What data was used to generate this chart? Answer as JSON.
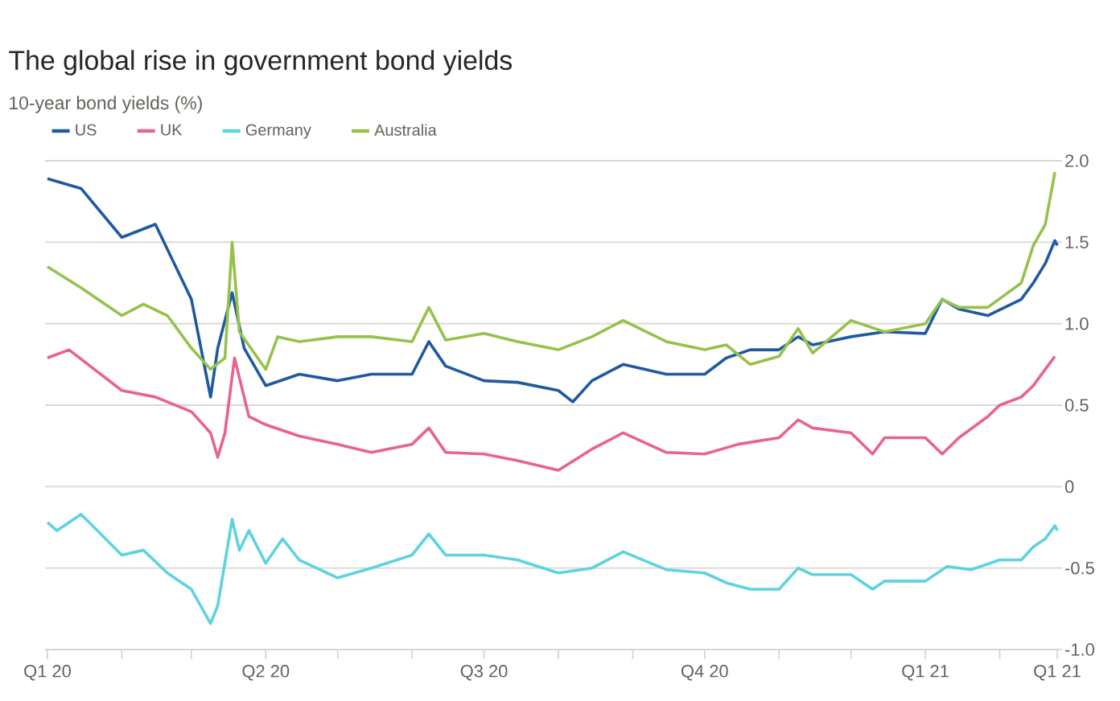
{
  "chart_data": {
    "type": "line",
    "title": "The global rise in government bond yields",
    "subtitle": "10-year bond yields (%)",
    "xlim": [
      "2019-12-31",
      "2021-02-27"
    ],
    "ylim": [
      -1.0,
      2.0
    ],
    "xticks": [
      {
        "value": "2020-01-01",
        "label": "Q1 20"
      },
      {
        "value": "2020-02-01",
        "label": null
      },
      {
        "value": "2020-03-01",
        "label": null
      },
      {
        "value": "2020-04-01",
        "label": "Q2 20"
      },
      {
        "value": "2020-05-01",
        "label": null
      },
      {
        "value": "2020-06-01",
        "label": null
      },
      {
        "value": "2020-07-01",
        "label": "Q3 20"
      },
      {
        "value": "2020-08-01",
        "label": null
      },
      {
        "value": "2020-09-01",
        "label": null
      },
      {
        "value": "2020-10-01",
        "label": "Q4 20"
      },
      {
        "value": "2020-11-01",
        "label": null
      },
      {
        "value": "2020-12-01",
        "label": null
      },
      {
        "value": "2021-01-01",
        "label": "Q1 21"
      },
      {
        "value": "2021-02-01",
        "label": null
      },
      {
        "value": "2021-02-25",
        "label": "Q1 21"
      }
    ],
    "yticks": [
      {
        "value": -1.0,
        "label": "-1.0"
      },
      {
        "value": -0.5,
        "label": "-0.5"
      },
      0,
      {
        "value": 0.5,
        "label": "0.5"
      },
      {
        "value": 1.0,
        "label": "1.0"
      },
      {
        "value": 1.5,
        "label": "1.5"
      },
      {
        "value": 2.0,
        "label": "2.0"
      }
    ],
    "grid": "y",
    "legend": "top left",
    "line_style": "solid",
    "series": [
      {
        "name": "US",
        "color": "#1f5aa0",
        "x": [
          "2020-01-01",
          "2020-01-15",
          "2020-02-01",
          "2020-02-15",
          "2020-03-01",
          "2020-03-09",
          "2020-03-12",
          "2020-03-18",
          "2020-03-23",
          "2020-04-01",
          "2020-04-15",
          "2020-05-01",
          "2020-05-15",
          "2020-06-01",
          "2020-06-08",
          "2020-06-15",
          "2020-07-01",
          "2020-07-15",
          "2020-08-01",
          "2020-08-07",
          "2020-08-15",
          "2020-08-28",
          "2020-09-15",
          "2020-10-01",
          "2020-10-10",
          "2020-10-20",
          "2020-11-01",
          "2020-11-09",
          "2020-11-15",
          "2020-12-01",
          "2020-12-15",
          "2021-01-01",
          "2021-01-08",
          "2021-01-15",
          "2021-01-27",
          "2021-02-10",
          "2021-02-15",
          "2021-02-20",
          "2021-02-24",
          "2021-02-25"
        ],
        "values": [
          1.89,
          1.83,
          1.53,
          1.61,
          1.15,
          0.55,
          0.85,
          1.19,
          0.85,
          0.62,
          0.69,
          0.65,
          0.69,
          0.69,
          0.89,
          0.74,
          0.65,
          0.64,
          0.59,
          0.52,
          0.65,
          0.75,
          0.69,
          0.69,
          0.79,
          0.84,
          0.84,
          0.92,
          0.87,
          0.92,
          0.95,
          0.94,
          1.15,
          1.09,
          1.05,
          1.15,
          1.25,
          1.37,
          1.51,
          1.48
        ]
      },
      {
        "name": "UK",
        "color": "#e8638f",
        "x": [
          "2020-01-01",
          "2020-01-10",
          "2020-02-01",
          "2020-02-15",
          "2020-03-01",
          "2020-03-09",
          "2020-03-12",
          "2020-03-15",
          "2020-03-19",
          "2020-03-25",
          "2020-04-01",
          "2020-04-15",
          "2020-05-01",
          "2020-05-15",
          "2020-06-01",
          "2020-06-08",
          "2020-06-15",
          "2020-07-01",
          "2020-07-15",
          "2020-08-01",
          "2020-08-15",
          "2020-08-28",
          "2020-09-15",
          "2020-10-01",
          "2020-10-15",
          "2020-11-01",
          "2020-11-09",
          "2020-11-15",
          "2020-12-01",
          "2020-12-10",
          "2020-12-15",
          "2021-01-01",
          "2021-01-08",
          "2021-01-15",
          "2021-01-27",
          "2021-02-01",
          "2021-02-10",
          "2021-02-15",
          "2021-02-20",
          "2021-02-24"
        ],
        "values": [
          0.79,
          0.84,
          0.59,
          0.55,
          0.46,
          0.33,
          0.18,
          0.33,
          0.79,
          0.43,
          0.38,
          0.31,
          0.26,
          0.21,
          0.26,
          0.36,
          0.21,
          0.2,
          0.16,
          0.1,
          0.23,
          0.33,
          0.21,
          0.2,
          0.26,
          0.3,
          0.41,
          0.36,
          0.33,
          0.2,
          0.3,
          0.3,
          0.2,
          0.3,
          0.43,
          0.5,
          0.55,
          0.62,
          0.72,
          0.8
        ]
      },
      {
        "name": "Germany",
        "color": "#5ed3e0",
        "x": [
          "2020-01-01",
          "2020-01-05",
          "2020-01-15",
          "2020-02-01",
          "2020-02-10",
          "2020-02-20",
          "2020-03-01",
          "2020-03-09",
          "2020-03-12",
          "2020-03-18",
          "2020-03-21",
          "2020-03-25",
          "2020-04-01",
          "2020-04-08",
          "2020-04-15",
          "2020-05-01",
          "2020-05-15",
          "2020-06-01",
          "2020-06-08",
          "2020-06-15",
          "2020-07-01",
          "2020-07-15",
          "2020-08-01",
          "2020-08-15",
          "2020-08-28",
          "2020-09-15",
          "2020-10-01",
          "2020-10-10",
          "2020-10-20",
          "2020-11-01",
          "2020-11-09",
          "2020-11-15",
          "2020-12-01",
          "2020-12-10",
          "2020-12-15",
          "2021-01-01",
          "2021-01-10",
          "2021-01-20",
          "2021-02-01",
          "2021-02-10",
          "2021-02-15",
          "2021-02-20",
          "2021-02-24",
          "2021-02-25"
        ],
        "values": [
          -0.22,
          -0.27,
          -0.17,
          -0.42,
          -0.39,
          -0.53,
          -0.63,
          -0.84,
          -0.73,
          -0.2,
          -0.39,
          -0.27,
          -0.47,
          -0.32,
          -0.45,
          -0.56,
          -0.5,
          -0.42,
          -0.29,
          -0.42,
          -0.42,
          -0.45,
          -0.53,
          -0.5,
          -0.4,
          -0.51,
          -0.53,
          -0.59,
          -0.63,
          -0.63,
          -0.5,
          -0.54,
          -0.54,
          -0.63,
          -0.58,
          -0.58,
          -0.49,
          -0.51,
          -0.45,
          -0.45,
          -0.37,
          -0.32,
          -0.24,
          -0.27
        ]
      },
      {
        "name": "Australia",
        "color": "#96c24c",
        "x": [
          "2020-01-01",
          "2020-01-15",
          "2020-02-01",
          "2020-02-10",
          "2020-02-20",
          "2020-03-01",
          "2020-03-09",
          "2020-03-15",
          "2020-03-18",
          "2020-03-21",
          "2020-04-01",
          "2020-04-06",
          "2020-04-15",
          "2020-05-01",
          "2020-05-15",
          "2020-06-01",
          "2020-06-08",
          "2020-06-15",
          "2020-07-01",
          "2020-07-15",
          "2020-08-01",
          "2020-08-15",
          "2020-08-28",
          "2020-09-15",
          "2020-10-01",
          "2020-10-10",
          "2020-10-20",
          "2020-11-01",
          "2020-11-09",
          "2020-11-15",
          "2020-12-01",
          "2020-12-15",
          "2021-01-01",
          "2021-01-08",
          "2021-01-15",
          "2021-01-27",
          "2021-02-10",
          "2021-02-15",
          "2021-02-20",
          "2021-02-24"
        ],
        "values": [
          1.35,
          1.22,
          1.05,
          1.12,
          1.05,
          0.85,
          0.72,
          0.79,
          1.5,
          0.95,
          0.72,
          0.92,
          0.89,
          0.92,
          0.92,
          0.89,
          1.1,
          0.9,
          0.94,
          0.89,
          0.84,
          0.92,
          1.02,
          0.89,
          0.84,
          0.87,
          0.75,
          0.8,
          0.97,
          0.82,
          1.02,
          0.95,
          1.0,
          1.15,
          1.1,
          1.1,
          1.25,
          1.48,
          1.61,
          1.93
        ]
      }
    ]
  }
}
